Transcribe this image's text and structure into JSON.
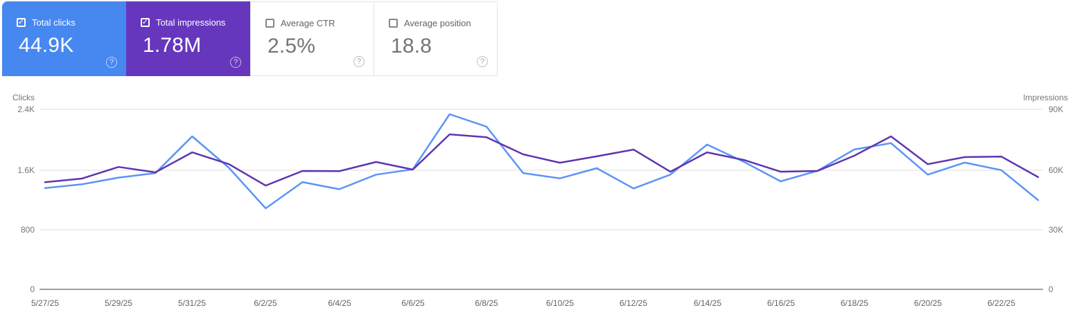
{
  "icons": {
    "check": "✓",
    "help": "?"
  },
  "colors": {
    "clicks_card": "#4787f0",
    "impressions_card": "#6637bd",
    "clicks_line": "#5b94f6",
    "impressions_line": "#5e35b1",
    "grid_line": "#efefef",
    "zero_axis_line": "#9e9e9e",
    "muted_text": "#757575"
  },
  "cards": [
    {
      "label": "Total clicks",
      "value": "44.9K",
      "checked": true
    },
    {
      "label": "Total impressions",
      "value": "1.78M",
      "checked": true
    },
    {
      "label": "Average CTR",
      "value": "2.5%",
      "checked": false
    },
    {
      "label": "Average position",
      "value": "18.8",
      "checked": false
    }
  ],
  "chart_data": {
    "type": "line",
    "x": [
      "5/27/25",
      "5/28/25",
      "5/29/25",
      "5/30/25",
      "5/31/25",
      "6/1/25",
      "6/2/25",
      "6/3/25",
      "6/4/25",
      "6/5/25",
      "6/6/25",
      "6/7/25",
      "6/8/25",
      "6/9/25",
      "6/10/25",
      "6/11/25",
      "6/12/25",
      "6/13/25",
      "6/14/25",
      "6/15/25",
      "6/16/25",
      "6/17/25",
      "6/18/25",
      "6/19/25",
      "6/20/25",
      "6/21/25",
      "6/22/25",
      "6/23/25"
    ],
    "x_tick_labels": [
      "5/27/25",
      "5/29/25",
      "5/31/25",
      "6/2/25",
      "6/4/25",
      "6/6/25",
      "6/8/25",
      "6/10/25",
      "6/12/25",
      "6/14/25",
      "6/16/25",
      "6/18/25",
      "6/20/25",
      "6/22/25"
    ],
    "series": [
      {
        "name": "Total clicks",
        "axis": "left",
        "color": "#5b94f6",
        "values": [
          1350,
          1400,
          1490,
          1550,
          2040,
          1620,
          1080,
          1430,
          1335,
          1530,
          1600,
          2335,
          2170,
          1550,
          1480,
          1615,
          1345,
          1530,
          1930,
          1700,
          1440,
          1580,
          1865,
          1950,
          1530,
          1690,
          1590,
          1190
        ]
      },
      {
        "name": "Total impressions",
        "axis": "right",
        "color": "#5e35b1",
        "values": [
          53600,
          55400,
          61200,
          58500,
          68500,
          62600,
          51900,
          59200,
          59100,
          63700,
          59900,
          77500,
          76100,
          67500,
          63300,
          66500,
          69900,
          58800,
          68500,
          64700,
          58800,
          59200,
          66800,
          76500,
          62600,
          66100,
          66400,
          56100
        ]
      }
    ],
    "left_axis": {
      "label": "Clicks",
      "ticks": [
        "2.4K",
        "1.6K",
        "800",
        "0"
      ],
      "max": 2400,
      "min": 0
    },
    "right_axis": {
      "label": "Impressions",
      "ticks": [
        "90K",
        "60K",
        "30K",
        "0"
      ],
      "max": 90000,
      "min": 0
    },
    "grid": true,
    "legend": "none"
  }
}
